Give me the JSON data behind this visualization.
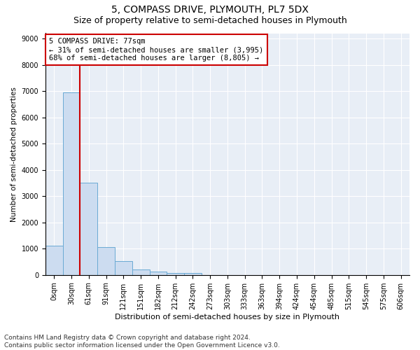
{
  "title": "5, COMPASS DRIVE, PLYMOUTH, PL7 5DX",
  "subtitle": "Size of property relative to semi-detached houses in Plymouth",
  "xlabel": "Distribution of semi-detached houses by size in Plymouth",
  "ylabel": "Number of semi-detached properties",
  "bar_color": "#ccdcf0",
  "bar_edge_color": "#6aaad4",
  "background_color": "#ffffff",
  "plot_bg_color": "#e8eef6",
  "grid_color": "#ffffff",
  "annotation_text": "5 COMPASS DRIVE: 77sqm\n← 31% of semi-detached houses are smaller (3,995)\n68% of semi-detached houses are larger (8,805) →",
  "annotation_box_color": "#ffffff",
  "annotation_box_edge_color": "#cc0000",
  "vline_color": "#cc0000",
  "vline_position": 1.5,
  "categories": [
    "0sqm",
    "30sqm",
    "61sqm",
    "91sqm",
    "121sqm",
    "151sqm",
    "182sqm",
    "212sqm",
    "242sqm",
    "273sqm",
    "303sqm",
    "333sqm",
    "363sqm",
    "394sqm",
    "424sqm",
    "454sqm",
    "485sqm",
    "515sqm",
    "545sqm",
    "575sqm",
    "606sqm"
  ],
  "bar_heights": [
    1100,
    6950,
    3500,
    1050,
    520,
    200,
    120,
    60,
    60,
    0,
    0,
    0,
    0,
    0,
    0,
    0,
    0,
    0,
    0,
    0,
    0
  ],
  "ylim": [
    0,
    9200
  ],
  "yticks": [
    0,
    1000,
    2000,
    3000,
    4000,
    5000,
    6000,
    7000,
    8000,
    9000
  ],
  "footnote": "Contains HM Land Registry data © Crown copyright and database right 2024.\nContains public sector information licensed under the Open Government Licence v3.0.",
  "title_fontsize": 10,
  "subtitle_fontsize": 9,
  "xlabel_fontsize": 8,
  "ylabel_fontsize": 7.5,
  "tick_fontsize": 7,
  "annotation_fontsize": 7.5,
  "footnote_fontsize": 6.5
}
